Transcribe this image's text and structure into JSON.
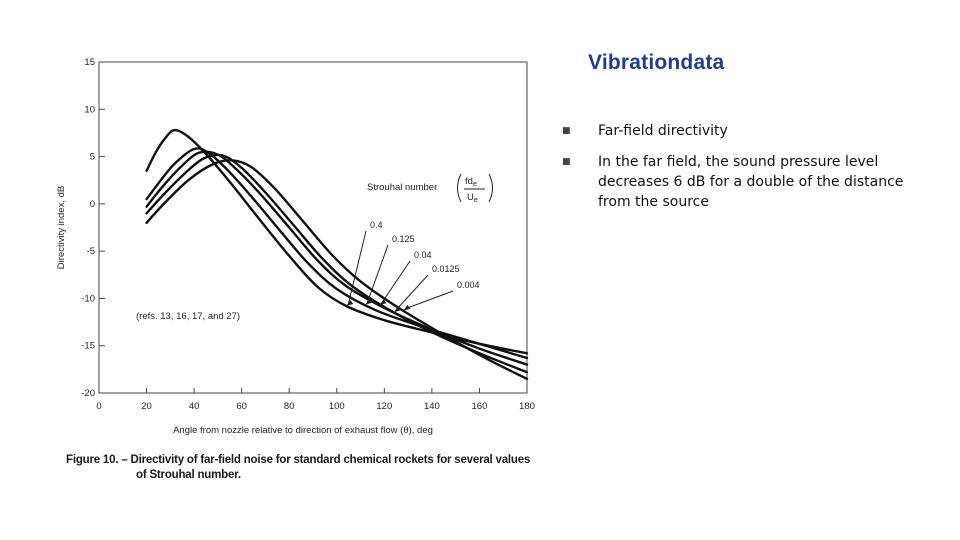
{
  "slide": {
    "brand": "Vibrationdata",
    "bullets": [
      "Far-field directivity",
      "In the far field, the sound pressure level decreases 6 dB for a double of the distance from the source"
    ]
  },
  "figure": {
    "caption_line1": "Figure 10. – Directivity of far-field noise for standard chemical rockets for several values",
    "caption_line2": "of Strouhal number."
  },
  "chart_data": {
    "type": "line",
    "xlabel": "Angle from nozzle relative to direction of exhaust flow (θ), deg",
    "ylabel": "Directivity index, dB",
    "xlim": [
      0,
      180
    ],
    "ylim": [
      -20,
      15
    ],
    "xticks": [
      0,
      20,
      40,
      60,
      80,
      100,
      120,
      140,
      160,
      180
    ],
    "yticks": [
      15,
      10,
      5,
      0,
      -5,
      -10,
      -15,
      -20
    ],
    "grid": false,
    "legend_title": "Strouhal number",
    "legend_fraction": {
      "numerator": "fd",
      "numerator_sub": "e",
      "denominator": "U",
      "denominator_sub": "e"
    },
    "reference_note": "(refs. 13, 16, 17, and 27)",
    "series": [
      {
        "name": "0.4",
        "x": [
          20,
          24,
          28,
          32,
          38,
          46,
          56,
          68,
          80,
          92,
          104,
          120,
          140,
          160,
          180
        ],
        "y": [
          3.5,
          5.5,
          7.0,
          7.8,
          7.0,
          5.0,
          2.0,
          -1.8,
          -5.5,
          -8.8,
          -10.8,
          -12.3,
          -13.6,
          -14.8,
          -15.8
        ]
      },
      {
        "name": "0.125",
        "x": [
          20,
          26,
          32,
          40,
          46,
          54,
          64,
          76,
          88,
          100,
          116,
          136,
          160,
          180
        ],
        "y": [
          0.5,
          2.5,
          4.3,
          5.8,
          5.4,
          3.6,
          0.8,
          -2.8,
          -6.3,
          -9.0,
          -11.2,
          -13.0,
          -14.8,
          -16.3
        ]
      },
      {
        "name": "0.04",
        "x": [
          20,
          26,
          34,
          42,
          50,
          58,
          68,
          80,
          92,
          104,
          120,
          140,
          160,
          180
        ],
        "y": [
          -0.3,
          1.6,
          3.8,
          5.4,
          5.2,
          3.6,
          1.0,
          -2.5,
          -6.0,
          -8.7,
          -11.0,
          -13.3,
          -15.3,
          -17.0
        ]
      },
      {
        "name": "0.0125",
        "x": [
          20,
          28,
          36,
          44,
          52,
          60,
          70,
          82,
          94,
          106,
          122,
          142,
          162,
          180
        ],
        "y": [
          -1.0,
          1.2,
          3.2,
          4.8,
          5.1,
          3.8,
          1.2,
          -2.3,
          -5.8,
          -8.6,
          -11.2,
          -13.8,
          -16.0,
          -17.8
        ]
      },
      {
        "name": "0.004",
        "x": [
          20,
          28,
          38,
          48,
          56,
          64,
          74,
          86,
          98,
          110,
          126,
          146,
          164,
          180
        ],
        "y": [
          -2.0,
          0.2,
          2.6,
          4.2,
          4.6,
          3.9,
          1.6,
          -1.9,
          -5.4,
          -8.2,
          -11.0,
          -14.0,
          -16.5,
          -18.5
        ]
      }
    ],
    "annotations": [
      {
        "text": "0.4",
        "series": "0.4",
        "x": 104
      },
      {
        "text": "0.125",
        "series": "0.125",
        "x": 112
      },
      {
        "text": "0.04",
        "series": "0.04",
        "x": 118
      },
      {
        "text": "0.0125",
        "series": "0.0125",
        "x": 124
      },
      {
        "text": "0.004",
        "series": "0.004",
        "x": 128
      }
    ]
  }
}
